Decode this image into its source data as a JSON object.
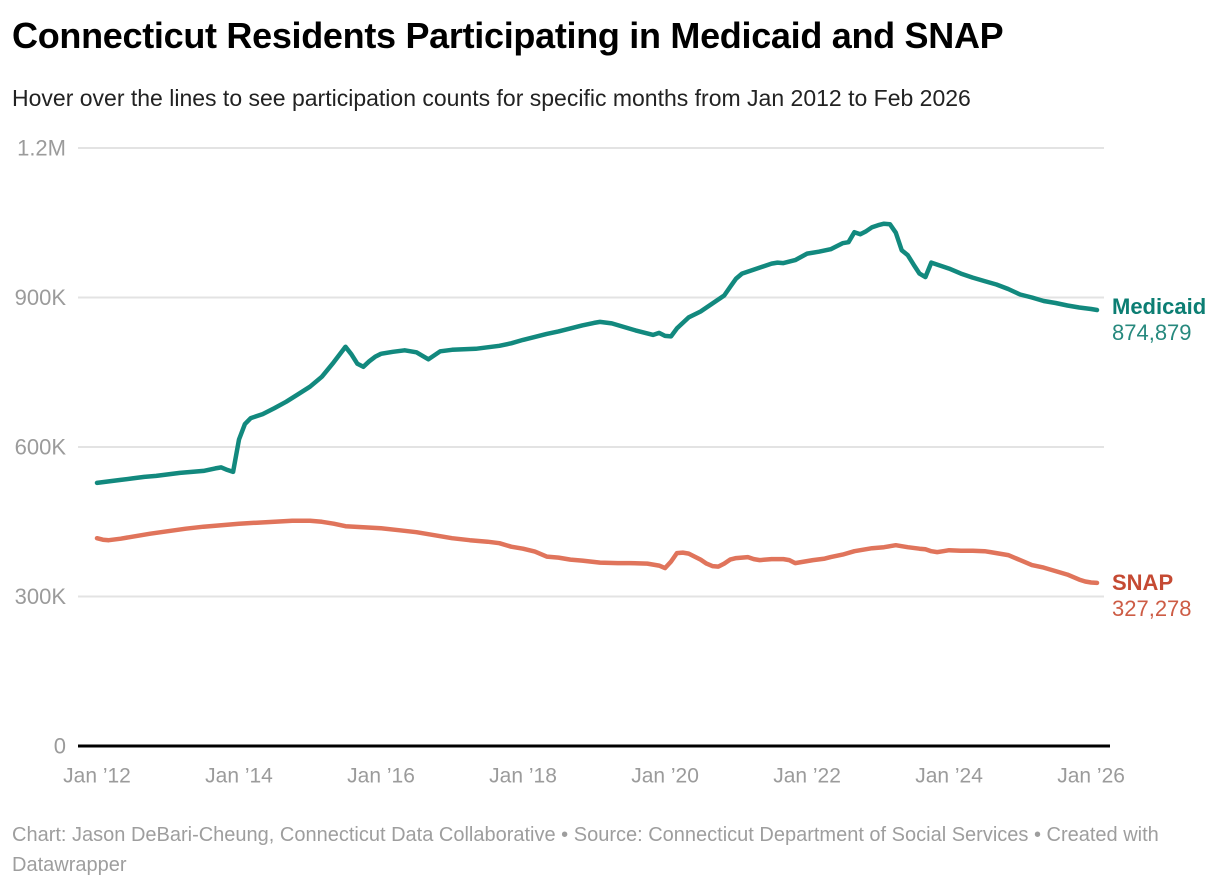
{
  "header": {
    "title": "Connecticut Residents Participating in Medicaid and SNAP",
    "subtitle": "Hover over the lines to see participation counts for specific months from Jan 2012 to Feb 2026"
  },
  "chart_data": {
    "type": "line",
    "title": "Connecticut Residents Participating in Medicaid and SNAP",
    "x_axis": {
      "start": "Jan 2012",
      "end": "Feb 2026",
      "unit": "month",
      "ticks": [
        {
          "label": "Jan ’12",
          "month": 0
        },
        {
          "label": "Jan ’14",
          "month": 24
        },
        {
          "label": "Jan ’16",
          "month": 48
        },
        {
          "label": "Jan ’18",
          "month": 72
        },
        {
          "label": "Jan ’20",
          "month": 96
        },
        {
          "label": "Jan ’22",
          "month": 120
        },
        {
          "label": "Jan ’24",
          "month": 144
        },
        {
          "label": "Jan ’26",
          "month": 168
        }
      ],
      "months_total": 169
    },
    "y_axis": {
      "min": 0,
      "max": 1200000,
      "ticks": [
        {
          "label": "0",
          "value": 0
        },
        {
          "label": "300K",
          "value": 300000
        },
        {
          "label": "600K",
          "value": 600000
        },
        {
          "label": "900K",
          "value": 900000
        },
        {
          "label": "1.2M",
          "value": 1200000
        }
      ],
      "grid": true
    },
    "style": {
      "grid_color": "#e3e3e3",
      "axis_color": "#000000",
      "tick_color": "#9b9b9b",
      "line_width": 4.5
    },
    "series": [
      {
        "name": "Medicaid",
        "color": "#12897e",
        "end_label": "Medicaid",
        "end_value": 874879,
        "end_value_text": "874,879",
        "label_color": "#0c7e73",
        "value_color": "#27897e",
        "points": [
          [
            0,
            528000
          ],
          [
            2,
            531000
          ],
          [
            4,
            534000
          ],
          [
            6,
            537000
          ],
          [
            8,
            540000
          ],
          [
            10,
            542000
          ],
          [
            12,
            545000
          ],
          [
            14,
            548000
          ],
          [
            16,
            550000
          ],
          [
            18,
            552000
          ],
          [
            20,
            557000
          ],
          [
            21,
            559000
          ],
          [
            22,
            554000
          ],
          [
            23,
            550000
          ],
          [
            24,
            615000
          ],
          [
            25,
            646000
          ],
          [
            26,
            658000
          ],
          [
            28,
            666000
          ],
          [
            30,
            678000
          ],
          [
            32,
            691000
          ],
          [
            34,
            706000
          ],
          [
            36,
            721000
          ],
          [
            38,
            741000
          ],
          [
            40,
            770000
          ],
          [
            42,
            801000
          ],
          [
            43,
            786000
          ],
          [
            44,
            767000
          ],
          [
            45,
            761000
          ],
          [
            46,
            772000
          ],
          [
            47,
            781000
          ],
          [
            48,
            787000
          ],
          [
            50,
            791000
          ],
          [
            52,
            794000
          ],
          [
            54,
            790000
          ],
          [
            55,
            783000
          ],
          [
            56,
            776000
          ],
          [
            57,
            784000
          ],
          [
            58,
            792000
          ],
          [
            60,
            795000
          ],
          [
            62,
            796000
          ],
          [
            64,
            797000
          ],
          [
            66,
            800000
          ],
          [
            68,
            803000
          ],
          [
            70,
            808000
          ],
          [
            72,
            815000
          ],
          [
            74,
            821000
          ],
          [
            76,
            827000
          ],
          [
            78,
            832000
          ],
          [
            80,
            838000
          ],
          [
            82,
            844000
          ],
          [
            84,
            849000
          ],
          [
            85,
            851000
          ],
          [
            87,
            848000
          ],
          [
            89,
            841000
          ],
          [
            91,
            834000
          ],
          [
            93,
            828000
          ],
          [
            94,
            825000
          ],
          [
            95,
            829000
          ],
          [
            96,
            823000
          ],
          [
            97,
            822000
          ],
          [
            98,
            838000
          ],
          [
            100,
            860000
          ],
          [
            102,
            872000
          ],
          [
            104,
            888000
          ],
          [
            105,
            896000
          ],
          [
            106,
            904000
          ],
          [
            107,
            921000
          ],
          [
            108,
            938000
          ],
          [
            109,
            948000
          ],
          [
            110,
            952000
          ],
          [
            111,
            956000
          ],
          [
            112,
            960000
          ],
          [
            114,
            968000
          ],
          [
            115,
            970000
          ],
          [
            116,
            969000
          ],
          [
            118,
            975000
          ],
          [
            120,
            988000
          ],
          [
            122,
            992000
          ],
          [
            124,
            997000
          ],
          [
            125,
            1003000
          ],
          [
            126,
            1009000
          ],
          [
            127,
            1011000
          ],
          [
            128,
            1031000
          ],
          [
            129,
            1027000
          ],
          [
            130,
            1033000
          ],
          [
            131,
            1041000
          ],
          [
            132,
            1045000
          ],
          [
            133,
            1048000
          ],
          [
            134,
            1047000
          ],
          [
            135,
            1030000
          ],
          [
            136,
            995000
          ],
          [
            137,
            985000
          ],
          [
            138,
            966000
          ],
          [
            139,
            948000
          ],
          [
            140,
            941000
          ],
          [
            141,
            970000
          ],
          [
            142,
            966000
          ],
          [
            143,
            962000
          ],
          [
            144,
            958000
          ],
          [
            146,
            948000
          ],
          [
            148,
            940000
          ],
          [
            150,
            933000
          ],
          [
            152,
            926000
          ],
          [
            154,
            917000
          ],
          [
            156,
            906000
          ],
          [
            158,
            900000
          ],
          [
            160,
            893000
          ],
          [
            162,
            889000
          ],
          [
            164,
            884000
          ],
          [
            166,
            880000
          ],
          [
            168,
            877000
          ],
          [
            169,
            874879
          ]
        ]
      },
      {
        "name": "SNAP",
        "color": "#e0745b",
        "end_label": "SNAP",
        "end_value": 327278,
        "end_value_text": "327,278",
        "label_color": "#c54a33",
        "value_color": "#cd5c45",
        "points": [
          [
            0,
            417000
          ],
          [
            1,
            414000
          ],
          [
            2,
            413000
          ],
          [
            4,
            416000
          ],
          [
            6,
            420000
          ],
          [
            9,
            426000
          ],
          [
            12,
            431000
          ],
          [
            15,
            436000
          ],
          [
            18,
            440000
          ],
          [
            21,
            443000
          ],
          [
            24,
            446000
          ],
          [
            27,
            448000
          ],
          [
            30,
            450000
          ],
          [
            33,
            452000
          ],
          [
            36,
            452000
          ],
          [
            38,
            450000
          ],
          [
            40,
            446000
          ],
          [
            42,
            441000
          ],
          [
            45,
            439000
          ],
          [
            48,
            437000
          ],
          [
            51,
            433000
          ],
          [
            54,
            429000
          ],
          [
            57,
            423000
          ],
          [
            60,
            417000
          ],
          [
            63,
            413000
          ],
          [
            66,
            410000
          ],
          [
            68,
            407000
          ],
          [
            70,
            400000
          ],
          [
            72,
            396000
          ],
          [
            74,
            390000
          ],
          [
            76,
            380000
          ],
          [
            78,
            378000
          ],
          [
            80,
            374000
          ],
          [
            82,
            372000
          ],
          [
            85,
            368000
          ],
          [
            88,
            367000
          ],
          [
            90,
            367000
          ],
          [
            93,
            366000
          ],
          [
            95,
            362000
          ],
          [
            96,
            357000
          ],
          [
            97,
            370000
          ],
          [
            98,
            387000
          ],
          [
            99,
            388000
          ],
          [
            100,
            386000
          ],
          [
            101,
            380000
          ],
          [
            102,
            374000
          ],
          [
            103,
            366000
          ],
          [
            104,
            361000
          ],
          [
            105,
            360000
          ],
          [
            106,
            366000
          ],
          [
            107,
            374000
          ],
          [
            108,
            377000
          ],
          [
            110,
            379000
          ],
          [
            111,
            375000
          ],
          [
            112,
            373000
          ],
          [
            114,
            375000
          ],
          [
            116,
            375000
          ],
          [
            117,
            373000
          ],
          [
            118,
            367000
          ],
          [
            119,
            369000
          ],
          [
            121,
            373000
          ],
          [
            123,
            376000
          ],
          [
            124,
            379000
          ],
          [
            126,
            384000
          ],
          [
            128,
            391000
          ],
          [
            129,
            393000
          ],
          [
            131,
            397000
          ],
          [
            133,
            399000
          ],
          [
            134,
            401000
          ],
          [
            135,
            403000
          ],
          [
            136,
            401000
          ],
          [
            137,
            399000
          ],
          [
            139,
            396000
          ],
          [
            140,
            395000
          ],
          [
            141,
            391000
          ],
          [
            142,
            389000
          ],
          [
            143,
            391000
          ],
          [
            144,
            393000
          ],
          [
            146,
            392000
          ],
          [
            148,
            392000
          ],
          [
            150,
            391000
          ],
          [
            151,
            389000
          ],
          [
            153,
            385000
          ],
          [
            154,
            383000
          ],
          [
            156,
            373000
          ],
          [
            158,
            363000
          ],
          [
            160,
            358000
          ],
          [
            162,
            351000
          ],
          [
            164,
            344000
          ],
          [
            165,
            339000
          ],
          [
            166,
            334000
          ],
          [
            167,
            330000
          ],
          [
            168,
            328000
          ],
          [
            169,
            327278
          ]
        ]
      }
    ],
    "legend_position": "line-end-labels-right"
  },
  "footer": {
    "credit": "Chart: Jason DeBari-Cheung, Connecticut Data Collaborative • Source: Connecticut Department of Social Services • Created with Datawrapper"
  }
}
